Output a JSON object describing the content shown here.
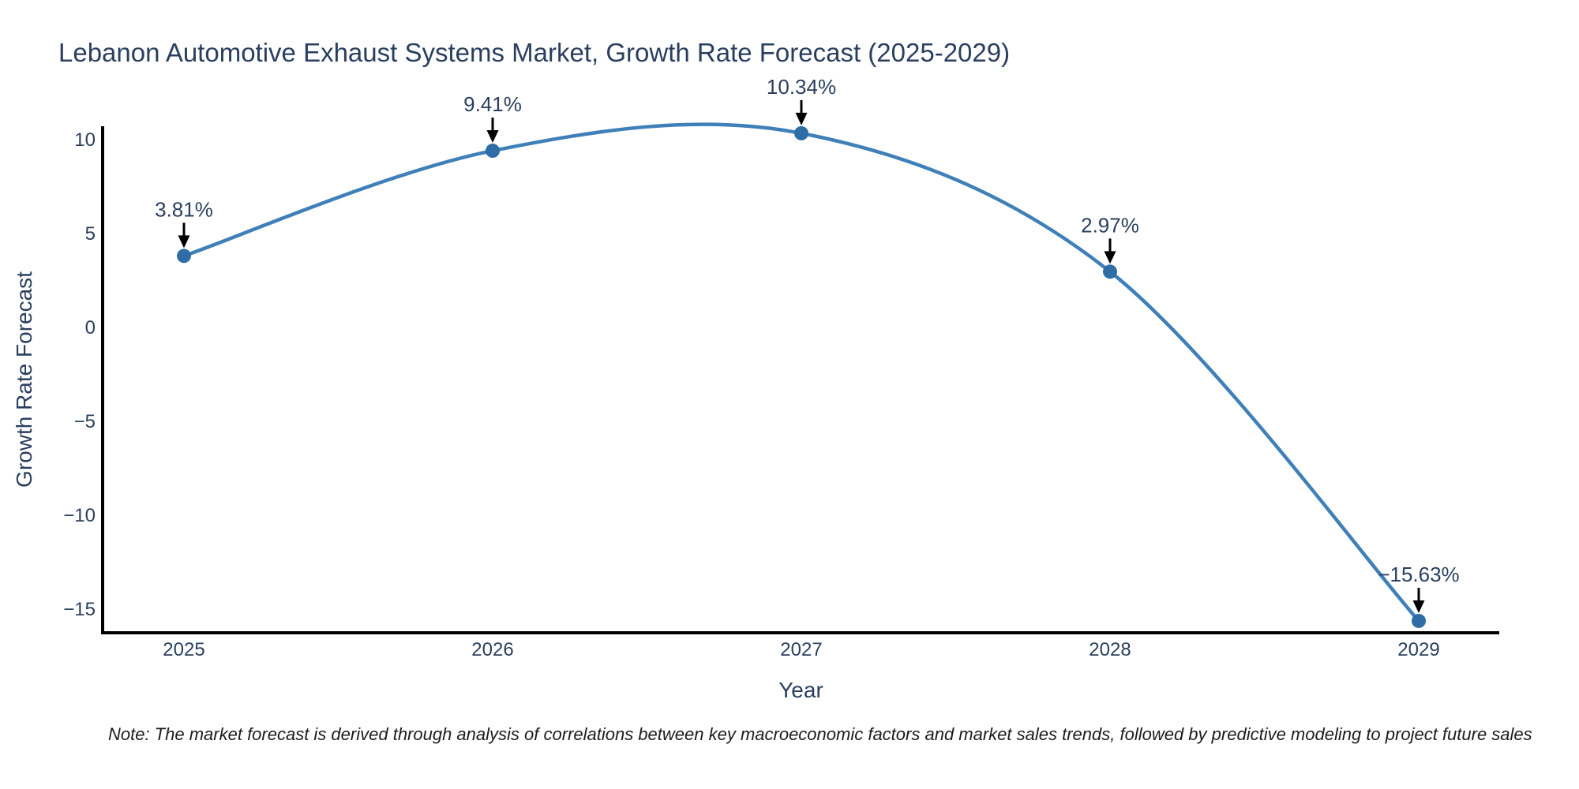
{
  "chart_data": {
    "type": "line",
    "title": "Lebanon Automotive Exhaust Systems Market, Growth Rate Forecast (2025-2029)",
    "xlabel": "Year",
    "ylabel": "Growth Rate Forecast",
    "x": [
      2025,
      2026,
      2027,
      2028,
      2029
    ],
    "x_tick_labels": [
      "2025",
      "2026",
      "2027",
      "2028",
      "2029"
    ],
    "y": [
      3.81,
      9.41,
      10.34,
      2.97,
      -15.63
    ],
    "point_labels": [
      "3.81%",
      "9.41%",
      "10.34%",
      "2.97%",
      "−15.63%"
    ],
    "y_ticks": [
      10,
      5,
      0,
      -5,
      -10,
      -15
    ],
    "y_tick_labels": [
      "10",
      "5",
      "0",
      "−5",
      "−10",
      "−15"
    ],
    "ylim": [
      -16.4,
      10.75
    ],
    "line_shape": "spline",
    "grid": false,
    "legend": "none",
    "colors": {
      "line": "#3f80b8",
      "marker": "#2e6da6",
      "axis": "#000000",
      "tick_text": "#2a3f5f",
      "annotation_text": "#2a3f5f",
      "arrow": "#000000",
      "background": "#ffffff"
    }
  },
  "note": "Note: The market forecast is derived through analysis of correlations between key macroeconomic factors and market sales trends, followed by predictive modeling to project future sales"
}
